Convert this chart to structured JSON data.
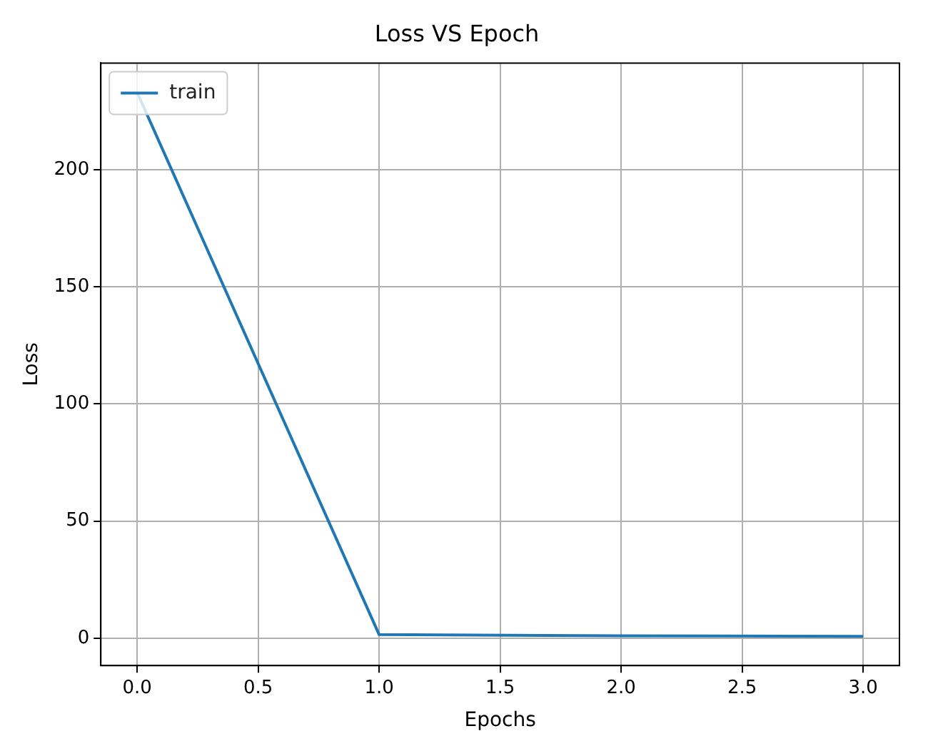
{
  "chart_data": {
    "type": "line",
    "title": "Loss VS Epoch",
    "xlabel": "Epochs",
    "ylabel": "Loss",
    "x": [
      0,
      1,
      2,
      3
    ],
    "series": [
      {
        "name": "train",
        "color": "#1f77b4",
        "values": [
          233,
          1.5,
          1.0,
          0.8
        ]
      }
    ],
    "xlim": [
      -0.15,
      3.15
    ],
    "xticks": [
      {
        "value": 0,
        "label": "0.0"
      },
      {
        "value": 0.5,
        "label": "0.5"
      },
      {
        "value": 1,
        "label": "1.0"
      },
      {
        "value": 1.5,
        "label": "1.5"
      },
      {
        "value": 2,
        "label": "2.0"
      },
      {
        "value": 2.5,
        "label": "2.5"
      },
      {
        "value": 3,
        "label": "3.0"
      }
    ],
    "ylim": [
      -11.7,
      245.5
    ],
    "yticks": [
      0,
      50,
      100,
      150,
      200
    ],
    "grid": true,
    "legend": "top left",
    "marker": "none",
    "line_style": "solid"
  }
}
